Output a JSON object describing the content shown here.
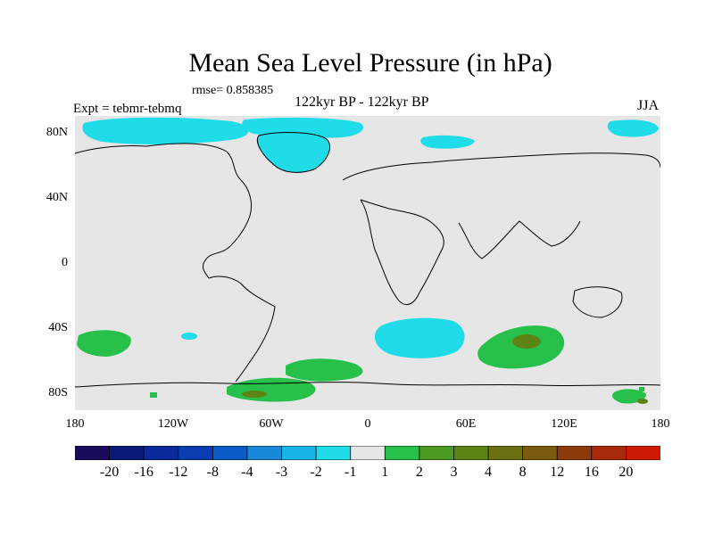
{
  "title": "Mean Sea Level Pressure (in hPa)",
  "rmse_label": "rmse= 0.858385",
  "experiment_label": "Expt = tebmr-tebmq",
  "period_label": "122kyr BP - 122kyr BP",
  "season_label": "JJA",
  "axes": {
    "lat_ticks": [
      {
        "label": "80N",
        "value": 80
      },
      {
        "label": "40N",
        "value": 40
      },
      {
        "label": "0",
        "value": 0
      },
      {
        "label": "40S",
        "value": -40
      },
      {
        "label": "80S",
        "value": -80
      }
    ],
    "lon_ticks": [
      {
        "label": "180",
        "value": -180
      },
      {
        "label": "120W",
        "value": -120
      },
      {
        "label": "60W",
        "value": -60
      },
      {
        "label": "0",
        "value": 0
      },
      {
        "label": "60E",
        "value": 60
      },
      {
        "label": "120E",
        "value": 120
      },
      {
        "label": "180",
        "value": 180
      }
    ],
    "lon_range": [
      -180,
      180
    ],
    "lat_range": [
      -90,
      90
    ]
  },
  "colorbar": {
    "colors": [
      "#1a0a5c",
      "#0a1a78",
      "#0a2a9a",
      "#0a3eb0",
      "#0a5ac8",
      "#1a88d8",
      "#18b4e6",
      "#20dce8",
      "#e6e6e6",
      "#26c04a",
      "#4c9a22",
      "#5c8414",
      "#6a7014",
      "#7a5a10",
      "#8c3a0c",
      "#a82a0a",
      "#cc1a06"
    ],
    "labels": [
      "-20",
      "-16",
      "-12",
      "-8",
      "-4",
      "-3",
      "-2",
      "-1",
      "1",
      "2",
      "3",
      "4",
      "8",
      "12",
      "16",
      "20"
    ]
  },
  "contour_regions": [
    {
      "name": "arctic-negative",
      "value": -2
    },
    {
      "name": "greenland-negative",
      "value": -2
    },
    {
      "name": "south-atlantic-negative",
      "value": -2
    },
    {
      "name": "south-pacific-negative",
      "value": -2
    },
    {
      "name": "south-pacific-positive",
      "value": 2
    },
    {
      "name": "south-atlantic-positive",
      "value": 2
    },
    {
      "name": "south-indian-positive",
      "value": 2
    },
    {
      "name": "antarctic-positive",
      "value": 2
    }
  ]
}
